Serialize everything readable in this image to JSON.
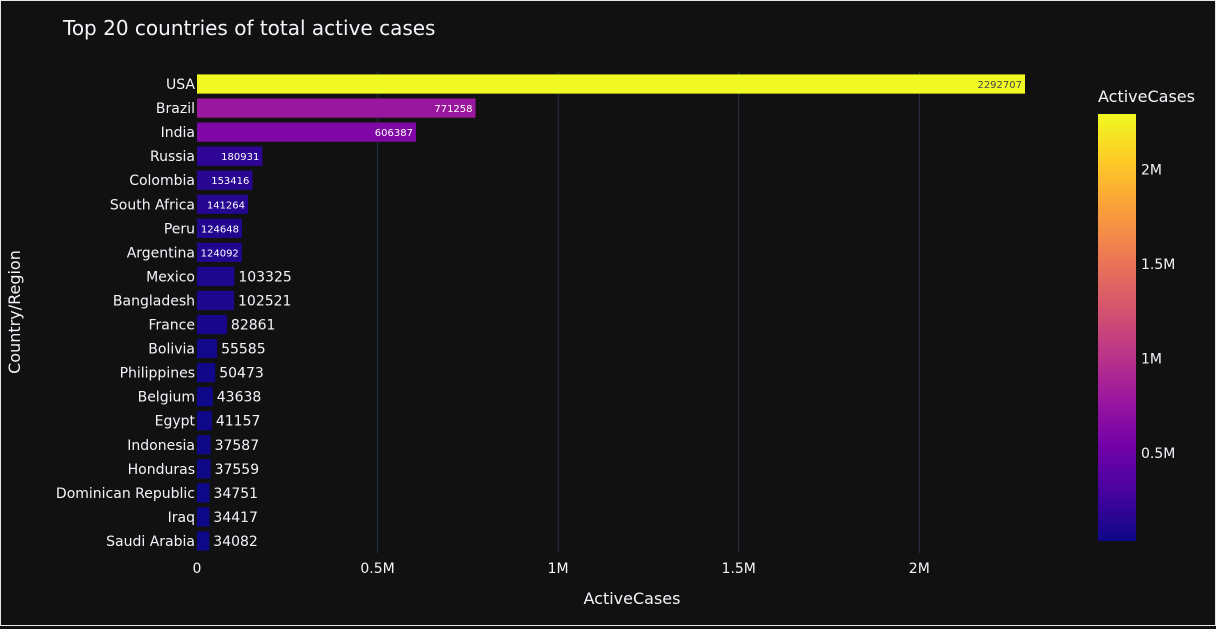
{
  "chart_data": {
    "type": "bar",
    "orientation": "horizontal",
    "title": "Top 20 countries of total active cases",
    "xlabel": "ActiveCases",
    "ylabel": "Country/Region",
    "xlim": [
      0,
      2292707
    ],
    "x_ticks": [
      {
        "value": 0,
        "label": "0"
      },
      {
        "value": 500000,
        "label": "0.5M"
      },
      {
        "value": 1000000,
        "label": "1M"
      },
      {
        "value": 1500000,
        "label": "1.5M"
      },
      {
        "value": 2000000,
        "label": "2M"
      }
    ],
    "grid": "vertical",
    "categories": [
      "Saudi Arabia",
      "Iraq",
      "Dominican Republic",
      "Honduras",
      "Indonesia",
      "Egypt",
      "Belgium",
      "Philippines",
      "Bolivia",
      "France",
      "Bangladesh",
      "Mexico",
      "Argentina",
      "Peru",
      "South Africa",
      "Colombia",
      "Russia",
      "India",
      "Brazil",
      "USA"
    ],
    "values": [
      34082,
      34417,
      34751,
      37559,
      37587,
      41157,
      43638,
      50473,
      55585,
      82861,
      102521,
      103325,
      124092,
      124648,
      141264,
      153416,
      180931,
      606387,
      771258,
      2292707
    ],
    "colorbar": {
      "title": "ActiveCases",
      "range": [
        34082,
        2292707
      ],
      "ticks": [
        {
          "value": 500000,
          "label": "0.5M"
        },
        {
          "value": 1000000,
          "label": "1M"
        },
        {
          "value": 1500000,
          "label": "1.5M"
        },
        {
          "value": 2000000,
          "label": "2M"
        }
      ],
      "colorscale": [
        "#0d0887",
        "#46039f",
        "#7201a8",
        "#9c179e",
        "#bd3786",
        "#d8576b",
        "#ed7953",
        "#fb9f3a",
        "#fdca26",
        "#f0f921"
      ]
    }
  }
}
